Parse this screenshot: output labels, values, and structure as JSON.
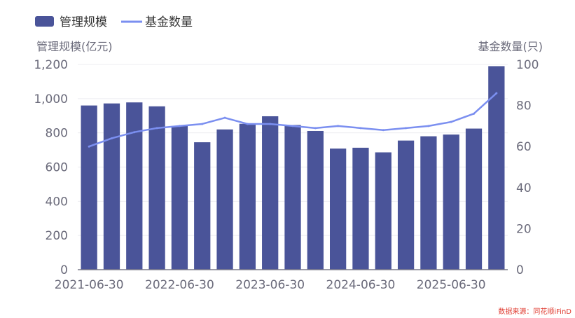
{
  "chart_data": {
    "type": "bar",
    "categories": [
      "2021-06-30",
      "2021-09-30",
      "2021-12-31",
      "2022-03-31",
      "2022-06-30",
      "2022-09-30",
      "2022-12-31",
      "2023-03-31",
      "2023-06-30",
      "2023-09-30",
      "2023-12-31",
      "2024-03-31",
      "2024-06-30",
      "2024-09-30",
      "2024-12-31",
      "2025-03-31",
      "2025-06-30",
      "2025-09-30",
      "2025-12-31"
    ],
    "x_tick_labels": [
      "2021-06-30",
      "2022-06-30",
      "2023-06-30",
      "2024-06-30",
      "2025-06-30"
    ],
    "series": [
      {
        "name": "管理规模",
        "type": "bar",
        "axis": "left",
        "color": "#4a5499",
        "values": [
          960,
          972,
          978,
          955,
          840,
          745,
          820,
          853,
          897,
          846,
          811,
          708,
          713,
          686,
          755,
          780,
          790,
          825,
          1190
        ]
      },
      {
        "name": "基金数量",
        "type": "line",
        "axis": "right",
        "color": "#7b8ff0",
        "values": [
          60,
          64,
          67,
          69,
          70,
          71,
          74,
          71,
          71,
          70,
          69,
          70,
          69,
          68,
          69,
          70,
          72,
          76,
          86
        ]
      }
    ],
    "ylabel_left": "管理规模(亿元)",
    "ylabel_right": "基金数量(只)",
    "ylim_left": [
      0,
      1200
    ],
    "ylim_right": [
      0,
      100
    ],
    "yticks_left": [
      "0",
      "200",
      "400",
      "600",
      "800",
      "1,000",
      "1,200"
    ],
    "yticks_right": [
      "0",
      "20",
      "40",
      "60",
      "80",
      "100"
    ],
    "legend_position": "top-left",
    "grid": true
  },
  "source_note": "数据来源：同花顺iFinD"
}
